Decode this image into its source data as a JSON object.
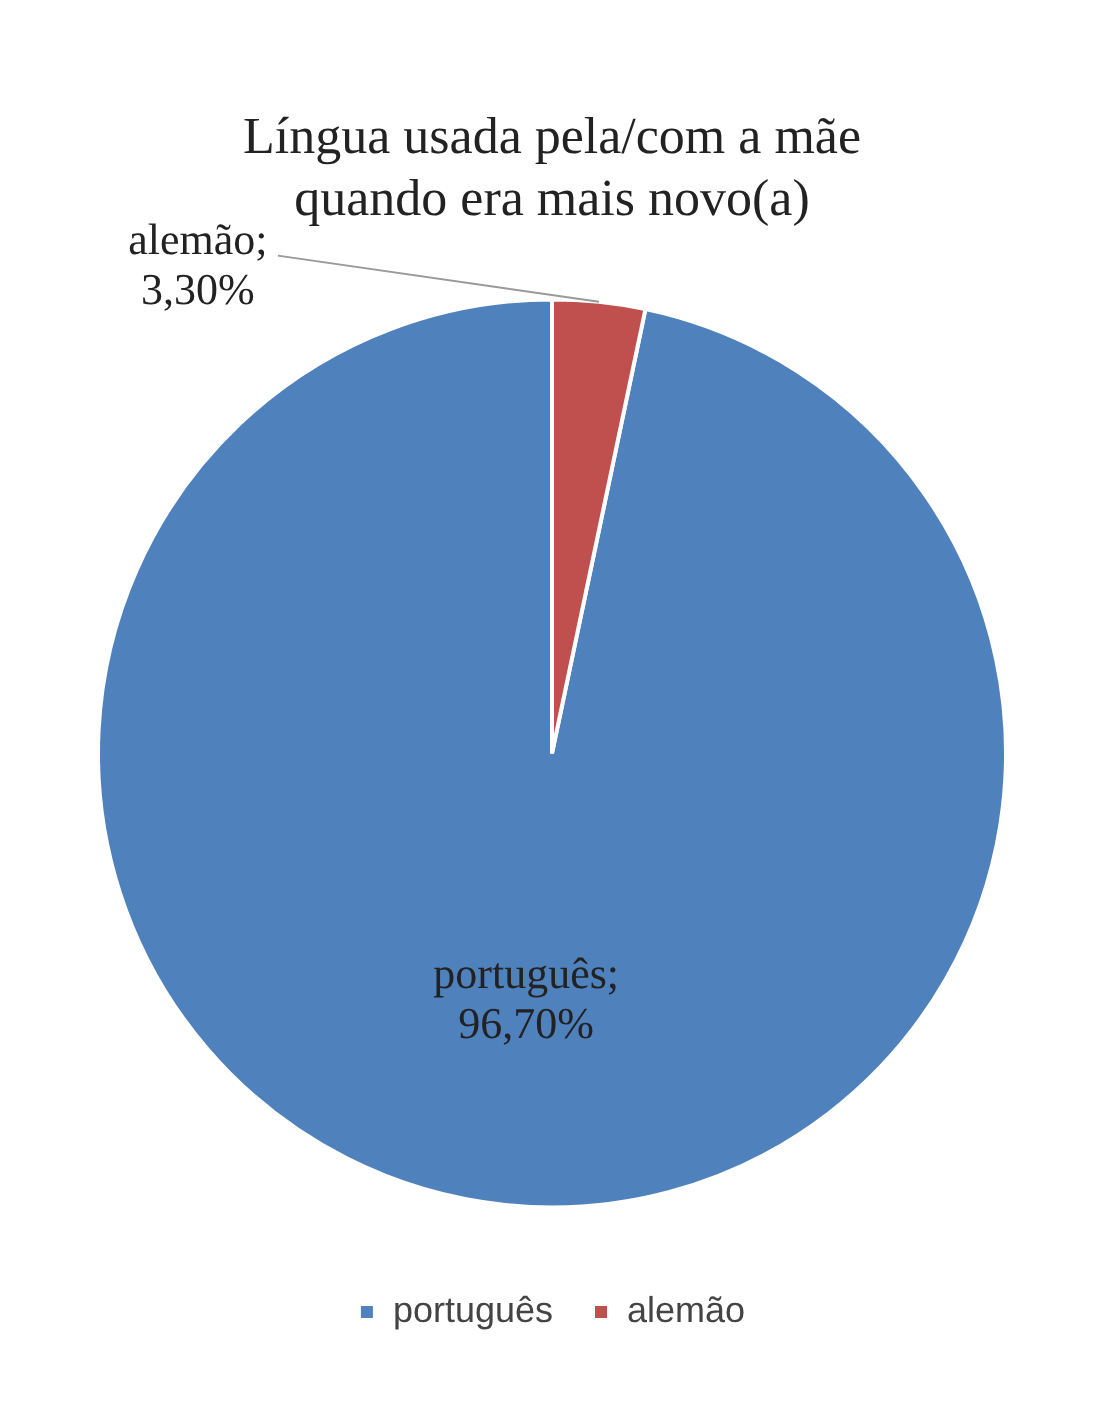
{
  "chart_data": {
    "type": "pie",
    "title": "Língua usada pela/com a mãe quando era mais novo(a)",
    "categories": [
      "português",
      "alemão"
    ],
    "values": [
      96.7,
      3.3
    ],
    "colors": [
      "#4f81bd",
      "#c0504d"
    ],
    "value_labels": [
      "português;\n96,70%",
      "alemão;\n3,30%"
    ],
    "legend": "bottom"
  }
}
